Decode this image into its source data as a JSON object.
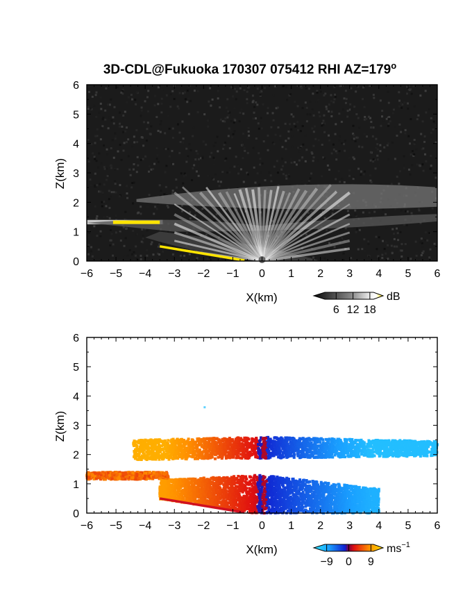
{
  "title": "3D-CDL@Fukuoka 170307 075412 RHI AZ=179",
  "title_superscript": "o",
  "chart_data": [
    {
      "type": "heatmap",
      "panel": "top",
      "quantity": "backscatter intensity",
      "xlabel": "X(km)",
      "ylabel": "Z(km)",
      "xlim": [
        -6,
        6
      ],
      "ylim": [
        0,
        6
      ],
      "xticks": [
        -6,
        -5,
        -4,
        -3,
        -2,
        -1,
        0,
        1,
        2,
        3,
        4,
        5,
        6
      ],
      "yticks": [
        0,
        1,
        2,
        3,
        4,
        5,
        6
      ],
      "colorbar": {
        "unit": "dB",
        "ticks": [
          6,
          12,
          18
        ],
        "range": [
          0,
          21
        ],
        "colormap": "grayscale-to-yellow"
      },
      "features": [
        {
          "name": "scan rays",
          "origin": [
            0,
            0
          ],
          "zmax": 2.6,
          "xrange": [
            -3,
            3
          ]
        },
        {
          "name": "upper layer",
          "xrange": [
            -4.3,
            6
          ],
          "zrange": [
            1.8,
            2.7
          ]
        },
        {
          "name": "left elevated layer",
          "xrange": [
            -6,
            -3.4
          ],
          "zrange": [
            1.25,
            1.4
          ],
          "level_db": 18
        },
        {
          "name": "near-surface layer",
          "xrange": [
            -3.5,
            -0.6
          ],
          "zrange": [
            0,
            0.5
          ],
          "level_db": 18
        }
      ]
    },
    {
      "type": "heatmap",
      "panel": "bottom",
      "quantity": "radial velocity",
      "xlabel": "X(km)",
      "ylabel": "Z(km)",
      "xlim": [
        -6,
        6
      ],
      "ylim": [
        0,
        6
      ],
      "xticks": [
        -6,
        -5,
        -4,
        -3,
        -2,
        -1,
        0,
        1,
        2,
        3,
        4,
        5,
        6
      ],
      "yticks": [
        0,
        1,
        2,
        3,
        4,
        5,
        6
      ],
      "colorbar": {
        "unit": "ms",
        "unit_exponent": "−1",
        "ticks": [
          "−9",
          "0",
          "9"
        ],
        "range": [
          -12,
          12
        ],
        "colormap": "cyan-blue-red-yellow"
      },
      "features": [
        {
          "name": "upper layer",
          "xrange": [
            -4.4,
            6
          ],
          "zrange": [
            1.8,
            2.6
          ],
          "left_ms": 9,
          "right_ms": -9
        },
        {
          "name": "left elevated layer",
          "xrange": [
            -6,
            -3.2
          ],
          "zrange": [
            1.15,
            1.4
          ],
          "level_ms": 7
        },
        {
          "name": "lower layer",
          "xrange": [
            -3.5,
            4
          ],
          "zrange": [
            0,
            1.3
          ],
          "left_ms": 8,
          "right_ms": -8
        }
      ]
    }
  ]
}
